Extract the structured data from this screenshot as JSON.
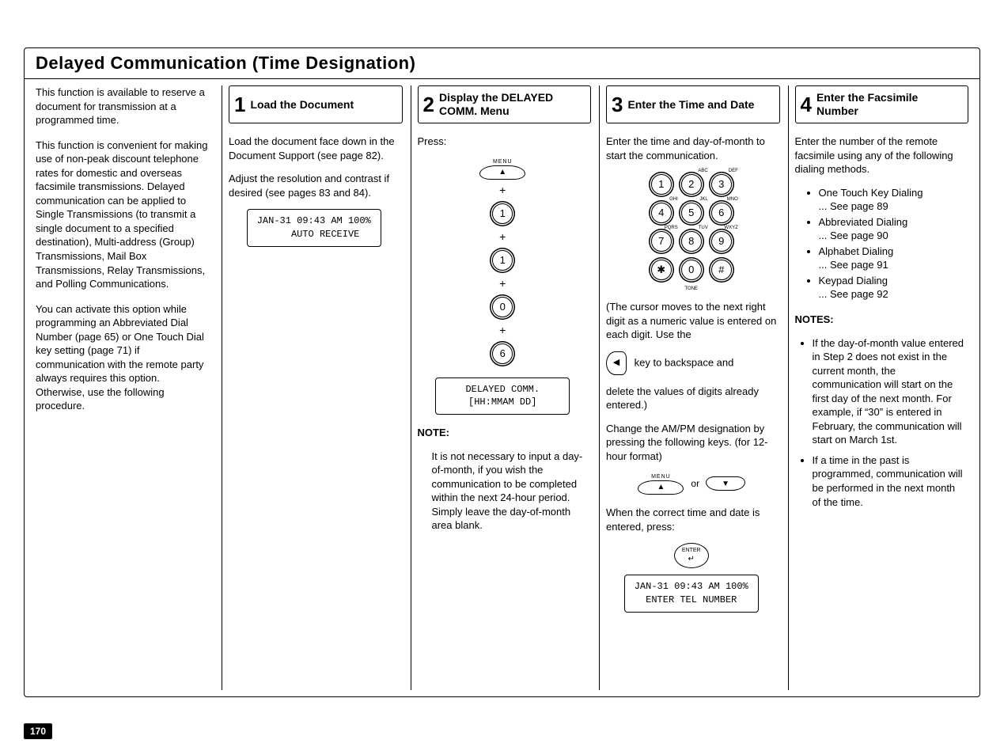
{
  "page_number": "170",
  "title": "Delayed Communication (Time Designation)",
  "intro": {
    "p1": "This function is available to reserve a document for transmission at a programmed time.",
    "p2": "This function is convenient for making use of non-peak discount telephone rates for domestic and overseas facsimile transmissions. Delayed communication can be applied to Single Transmissions (to transmit a single document to a specified destination), Multi-address (Group) Transmissions, Mail Box Transmissions, Relay Transmissions, and Polling Communications.",
    "p3": "You can activate this option while programming an Abbreviated Dial Number (page 65) or One Touch Dial key setting (page 71) if communication with the remote party always requires this option. Otherwise, use the following procedure."
  },
  "step1": {
    "title": "Load the Document",
    "p1": "Load the document face down in the Document Support (see page 82).",
    "p2": "Adjust the resolution and contrast if desired (see pages 83 and 84).",
    "lcd": "JAN-31 09:43 AM 100%\n    AUTO RECEIVE"
  },
  "step2": {
    "title": "Display the DELAYED COMM. Menu",
    "p1": "Press:",
    "menu_label": "MENU",
    "keys": [
      "1",
      "1",
      "0",
      "6"
    ],
    "lcd": "DELAYED COMM.\n[HH:MMAM DD]",
    "note_heading": "NOTE:",
    "note_body": "It is not necessary to input a day-of-month, if you wish the communication to be completed within the next 24-hour period.\nSimply leave the day-of-month area blank."
  },
  "step3": {
    "title": "Enter the Time and Date",
    "p1": "Enter the time and day-of-month to start the communication.",
    "keypad_sup": {
      "2": "ABC",
      "3": "DEF",
      "4": "GHI",
      "5": "JKL",
      "6": "MNO",
      "7": "PQRS",
      "8": "TUV",
      "9": "WXYZ"
    },
    "tone": "TONE",
    "p2": "(The cursor moves to the next right digit as a numeric value is entered on each digit. Use the",
    "p3": "key to backspace and",
    "p4": "delete the values of digits already entered.)",
    "p5": "Change the AM/PM designation by pressing the following keys. (for 12-hour format)",
    "menu_label": "MENU",
    "or": "or",
    "p6": "When the correct time and date is entered, press:",
    "enter_label": "ENTER",
    "lcd": "JAN-31 09:43 AM 100%\nENTER TEL NUMBER"
  },
  "step4": {
    "title": "Enter the Facsimile Number",
    "p1": "Enter the number of the remote facsimile using any of the following dialing methods.",
    "dial_methods": [
      {
        "name": "One Touch Key Dialing",
        "ref": "... See page 89"
      },
      {
        "name": "Abbreviated Dialing",
        "ref": "... See page 90"
      },
      {
        "name": "Alphabet Dialing",
        "ref": "... See page 91"
      },
      {
        "name": "Keypad Dialing",
        "ref": "... See page 92"
      }
    ],
    "notes_heading": "NOTES:",
    "notes": [
      "If the day-of-month value entered in Step 2 does not exist in the current month, the communication will start on the first day of the next month. For example, if “30” is entered in February, the communication will start on March 1st.",
      "If a time in the past is programmed, communication will be performed in the next month of the time."
    ]
  }
}
